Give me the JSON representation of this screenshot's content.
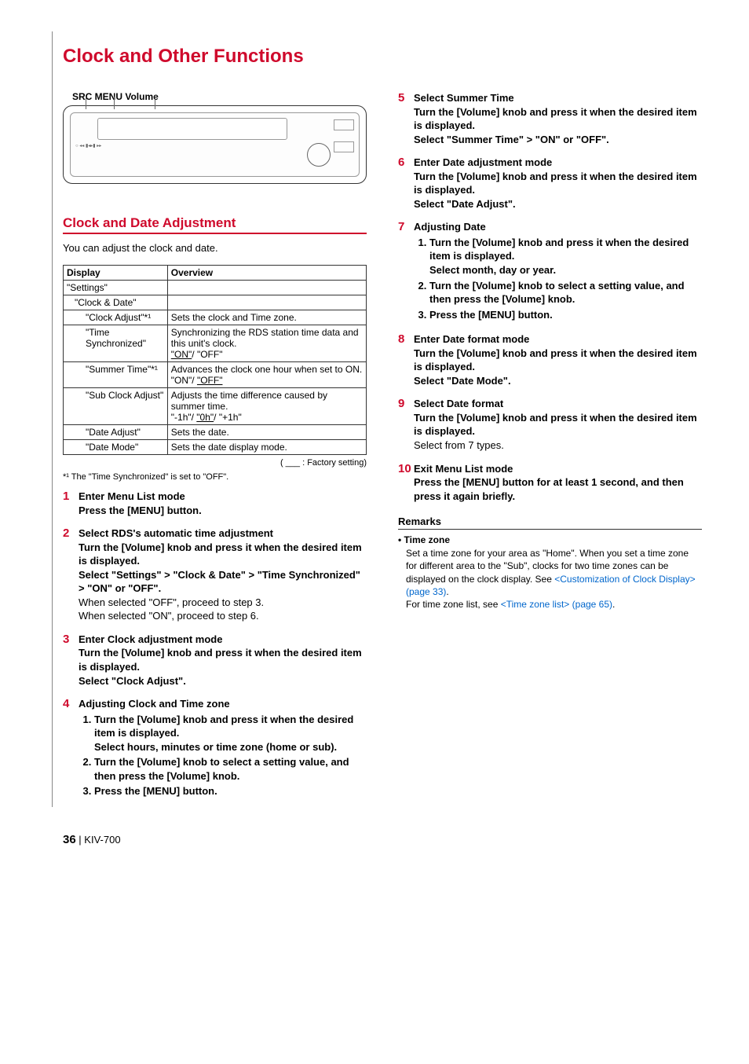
{
  "colors": {
    "accent": "#cf0a2c",
    "link": "#0066cc",
    "text": "#000000",
    "border": "#333333"
  },
  "title": "Clock and Other Functions",
  "device_labels": "SRC  MENU  Volume",
  "section_title": "Clock and Date Adjustment",
  "intro": "You can adjust the clock and date.",
  "table": {
    "headers": [
      "Display",
      "Overview"
    ],
    "rows": [
      {
        "indent": 0,
        "display": "\"Settings\"",
        "overview": ""
      },
      {
        "indent": 1,
        "display": "\"Clock & Date\"",
        "overview": ""
      },
      {
        "indent": 2,
        "display": "\"Clock Adjust\"*¹",
        "overview": "Sets the clock and Time zone."
      },
      {
        "indent": 2,
        "display": "\"Time Synchronized\"",
        "overview_html": "Synchronizing the RDS station time data and this unit's clock.<br><span class='ul'>\"ON\"</span>/ \"OFF\""
      },
      {
        "indent": 2,
        "display": "\"Summer Time\"*¹",
        "overview_html": "Advances the clock one hour when set to ON.<br>\"ON\"/ <span class='ul'>\"OFF\"</span>"
      },
      {
        "indent": 2,
        "display": "\"Sub Clock Adjust\"",
        "overview_html": "Adjusts the time difference caused by summer time.<br>\"-1h\"/ <span class='ul'>\"0h\"</span>/ \"+1h\""
      },
      {
        "indent": 2,
        "display": "\"Date Adjust\"",
        "overview": "Sets the date."
      },
      {
        "indent": 2,
        "display": "\"Date Mode\"",
        "overview": "Sets the date display mode."
      }
    ]
  },
  "factory_note": "( ___ : Factory setting)",
  "footnote": "*¹ The \"Time Synchronized\" is set to \"OFF\".",
  "steps_left": [
    {
      "num": "1",
      "title": "Enter Menu List mode",
      "lines": [
        {
          "bold": true,
          "text": "Press the [MENU] button."
        }
      ]
    },
    {
      "num": "2",
      "title": "Select RDS's automatic time adjustment",
      "lines": [
        {
          "bold": true,
          "text": "Turn the [Volume] knob and press it when the desired item is displayed."
        },
        {
          "bold": true,
          "html": "Select \"Settings\" <span class='chev'>&gt;</span> \"Clock & Date\" <span class='chev'>&gt;</span> \"Time Synchronized\" <span class='chev'>&gt;</span> \"ON\" or \"OFF\"."
        },
        {
          "bold": false,
          "text": "When selected \"OFF\", proceed to step 3."
        },
        {
          "bold": false,
          "text": "When selected \"ON\", proceed to step 6."
        }
      ]
    },
    {
      "num": "3",
      "title": "Enter Clock adjustment mode",
      "lines": [
        {
          "bold": true,
          "text": "Turn the [Volume] knob and press it when the desired item is displayed."
        },
        {
          "bold": true,
          "text": "Select \"Clock Adjust\"."
        }
      ]
    },
    {
      "num": "4",
      "title": "Adjusting Clock and Time zone",
      "sublist": [
        "Turn the [Volume] knob and press it when the desired item is displayed.<br>Select hours, minutes or time zone (home or sub).",
        "Turn the [Volume] knob to select a setting value, and then press the [Volume] knob.",
        "Press the [MENU] button."
      ]
    }
  ],
  "steps_right": [
    {
      "num": "5",
      "title": "Select Summer Time",
      "lines": [
        {
          "bold": true,
          "text": "Turn the [Volume] knob and press it when the desired item is displayed."
        },
        {
          "bold": true,
          "html": "Select \"Summer Time\" <span class='chev'>&gt;</span> \"ON\" or \"OFF\"."
        }
      ]
    },
    {
      "num": "6",
      "title": "Enter Date adjustment mode",
      "lines": [
        {
          "bold": true,
          "text": "Turn the [Volume] knob and press it when the desired item is displayed."
        },
        {
          "bold": true,
          "text": "Select \"Date Adjust\"."
        }
      ]
    },
    {
      "num": "7",
      "title": "Adjusting Date",
      "sublist": [
        "Turn the [Volume] knob and press it when the desired item is displayed.<br>Select month, day or year.",
        "Turn the [Volume] knob to select a setting value, and then press the [Volume] knob.",
        "Press the [MENU] button."
      ]
    },
    {
      "num": "8",
      "title": "Enter Date format mode",
      "lines": [
        {
          "bold": true,
          "text": "Turn the [Volume] knob and press it when the desired item is displayed."
        },
        {
          "bold": true,
          "text": "Select \"Date Mode\"."
        }
      ]
    },
    {
      "num": "9",
      "title": "Select Date format",
      "lines": [
        {
          "bold": true,
          "text": "Turn the [Volume] knob and press it when the desired item is displayed."
        },
        {
          "bold": false,
          "text": "Select from 7 types."
        }
      ]
    },
    {
      "num": "10",
      "title": "Exit Menu List mode",
      "lines": [
        {
          "bold": true,
          "text": "Press the [MENU] button for at least 1 second, and then press it again briefly."
        }
      ]
    }
  ],
  "remarks": {
    "heading": "Remarks",
    "items": [
      {
        "title": "Time zone",
        "html": "Set a time zone for your area as \"Home\". When you set a time zone for different area to the \"Sub\", clocks for two time zones can be displayed on the clock display. See <span class='link'>&lt;Customization of Clock Display&gt; (page 33)</span>.<br>For time zone list, see <span class='link'>&lt;Time zone list&gt; (page 65)</span>."
      }
    ]
  },
  "footer": {
    "page": "36",
    "model": "KIV-700",
    "sep": " |  "
  }
}
